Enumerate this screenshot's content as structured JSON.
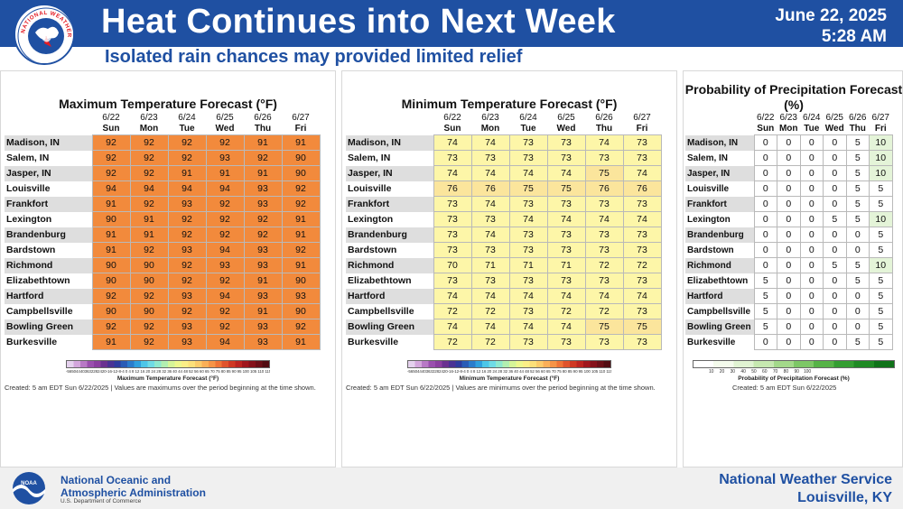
{
  "header": {
    "title": "Heat Continues into Next Week",
    "subtitle": "Isolated rain chances may provided limited relief",
    "date": "June 22, 2025",
    "time": "5:28 AM",
    "logo_text": "NATIONAL WEATHER SERVICE"
  },
  "footer": {
    "noaa_line1": "National Oceanic and",
    "noaa_line2": "Atmospheric Administration",
    "noaa_sub": "U.S. Department of Commerce",
    "nws_line1": "National Weather Service",
    "nws_line2": "Louisville, KY"
  },
  "colors": {
    "header_bg": "#1f50a2",
    "max_cell": "#f28a3c",
    "min_cell": "#fdf6a8",
    "min_cell_warm": "#fbe59c",
    "pop_cell": "#ffffff",
    "pop_cell_low": "#e4f4d8"
  },
  "columns": [
    {
      "date": "6/22",
      "day": "Sun"
    },
    {
      "date": "6/23",
      "day": "Mon"
    },
    {
      "date": "6/24",
      "day": "Tue"
    },
    {
      "date": "6/25",
      "day": "Wed"
    },
    {
      "date": "6/26",
      "day": "Thu"
    },
    {
      "date": "6/27",
      "day": "Fri"
    }
  ],
  "cities": [
    "Madison, IN",
    "Salem, IN",
    "Jasper, IN",
    "Louisville",
    "Frankfort",
    "Lexington",
    "Brandenburg",
    "Bardstown",
    "Richmond",
    "Elizabethtown",
    "Hartford",
    "Campbellsville",
    "Bowling Green",
    "Burkesville"
  ],
  "panels": [
    {
      "id": "max",
      "title": "Maximum Temperature Forecast (°F)",
      "cbar_title": "Maximum Temperature Forecast (°F)",
      "created": "Created: 5 am EDT Sun 6/22/2025  |  Values are maximums over the period beginning at the time shown.",
      "ticks": "-565044403632282420-16-12-8-4 0 4 8 12 16 20 24 28 32 36 40 44 48 52 56 60 65 70 75 80 85 90 95 100 105 110 115 120 125 130 135 140",
      "values": [
        [
          92,
          92,
          92,
          92,
          91,
          91
        ],
        [
          92,
          92,
          92,
          93,
          92,
          90
        ],
        [
          92,
          92,
          91,
          91,
          91,
          90
        ],
        [
          94,
          94,
          94,
          94,
          93,
          92
        ],
        [
          91,
          92,
          93,
          92,
          93,
          92
        ],
        [
          90,
          91,
          92,
          92,
          92,
          91
        ],
        [
          91,
          91,
          92,
          92,
          92,
          91
        ],
        [
          91,
          92,
          93,
          94,
          93,
          92
        ],
        [
          90,
          90,
          92,
          93,
          93,
          91
        ],
        [
          90,
          90,
          92,
          92,
          91,
          90
        ],
        [
          92,
          92,
          93,
          94,
          93,
          93
        ],
        [
          90,
          90,
          92,
          92,
          91,
          90
        ],
        [
          92,
          92,
          93,
          92,
          93,
          92
        ],
        [
          91,
          92,
          93,
          94,
          93,
          91
        ]
      ]
    },
    {
      "id": "min",
      "title": "Minimum Temperature Forecast (°F)",
      "cbar_title": "Minimum Temperature Forecast (°F)",
      "created": "Created: 5 am EDT Sun 6/22/2025  |  Values are minimums over the period beginning at the time shown.",
      "ticks": "-565044403632282420-16-12-8-4 0 4 8 12 16 20 24 28 32 36 40 44 48 52 56 60 65 70 75 80 85 90 95 100 105 110 115 120 125 130 135 140",
      "values": [
        [
          74,
          74,
          73,
          73,
          74,
          73
        ],
        [
          73,
          73,
          73,
          73,
          73,
          73
        ],
        [
          74,
          74,
          74,
          74,
          75,
          74
        ],
        [
          76,
          76,
          75,
          75,
          76,
          76
        ],
        [
          73,
          74,
          73,
          73,
          73,
          73
        ],
        [
          73,
          73,
          74,
          74,
          74,
          74
        ],
        [
          73,
          74,
          73,
          73,
          73,
          73
        ],
        [
          73,
          73,
          73,
          73,
          73,
          73
        ],
        [
          70,
          71,
          71,
          71,
          72,
          72
        ],
        [
          73,
          73,
          73,
          73,
          73,
          73
        ],
        [
          74,
          74,
          74,
          74,
          74,
          74
        ],
        [
          72,
          72,
          73,
          72,
          72,
          73
        ],
        [
          74,
          74,
          74,
          74,
          75,
          75
        ],
        [
          72,
          72,
          73,
          73,
          73,
          73
        ]
      ]
    },
    {
      "id": "pop",
      "title": "Probability of Precipitation Forecast (%)",
      "cbar_title": "Probability of Precipitation Forecast (%)",
      "created": "Created: 5 am EDT Sun 6/22/2025",
      "ticks": "10     20     30     40     50     60     70     80     90    100",
      "values": [
        [
          0,
          0,
          0,
          0,
          5,
          10
        ],
        [
          0,
          0,
          0,
          0,
          5,
          10
        ],
        [
          0,
          0,
          0,
          0,
          5,
          10
        ],
        [
          0,
          0,
          0,
          0,
          5,
          5
        ],
        [
          0,
          0,
          0,
          0,
          5,
          5
        ],
        [
          0,
          0,
          0,
          5,
          5,
          10
        ],
        [
          0,
          0,
          0,
          0,
          0,
          5
        ],
        [
          0,
          0,
          0,
          0,
          0,
          5
        ],
        [
          0,
          0,
          0,
          5,
          5,
          10
        ],
        [
          5,
          0,
          0,
          0,
          5,
          5
        ],
        [
          5,
          0,
          0,
          0,
          0,
          5
        ],
        [
          5,
          0,
          0,
          0,
          0,
          5
        ],
        [
          5,
          0,
          0,
          0,
          0,
          5
        ],
        [
          0,
          0,
          0,
          0,
          5,
          5
        ]
      ]
    }
  ]
}
